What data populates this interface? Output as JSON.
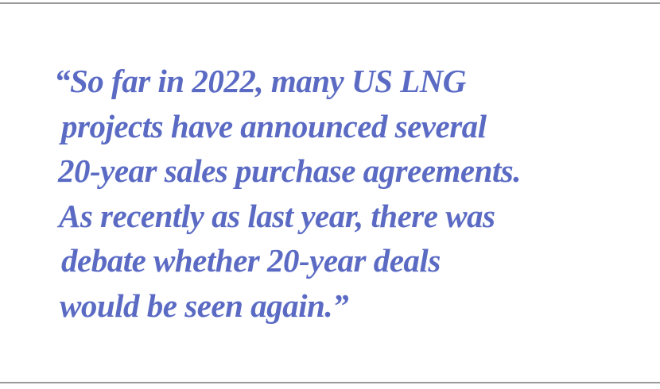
{
  "quote": {
    "lines": [
      "“So far in 2022, many US LNG",
      "projects have announced several",
      "20-year sales purchase agreements.",
      "As recently as last year, there was",
      "debate whether 20-year deals",
      "would be seen again.”"
    ]
  },
  "colors": {
    "text": "#5b6bc4",
    "rule": "#9a9a9a"
  }
}
